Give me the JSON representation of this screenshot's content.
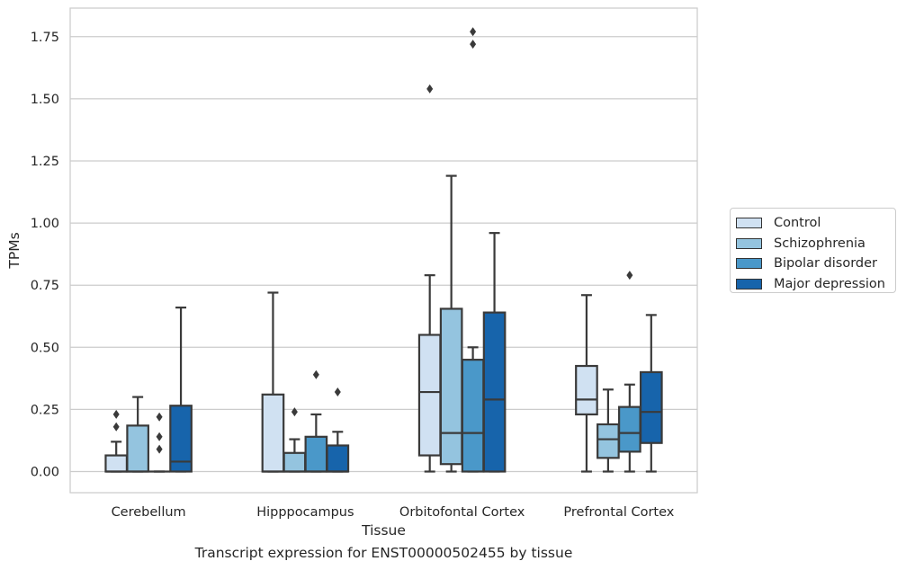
{
  "chart_data": {
    "type": "boxplot",
    "xlabel": "Tissue",
    "ylabel": "TPMs",
    "caption": "Transcript expression for ENST00000502455 by tissue",
    "ylim": [
      -0.085,
      1.865
    ],
    "yticks": [
      "0.00",
      "0.25",
      "0.50",
      "0.75",
      "1.00",
      "1.25",
      "1.50",
      "1.75"
    ],
    "grid": "horizontal",
    "legend_position": "right",
    "categories": [
      "Cerebellum",
      "Hipppocampus",
      "Orbitofontal Cortex",
      "Prefrontal Cortex"
    ],
    "series": [
      {
        "name": "Control",
        "color": "#d0e1f2",
        "boxes": [
          {
            "whislo": 0.0,
            "q1": 0.0,
            "med": 0.0,
            "q3": 0.065,
            "whishi": 0.12,
            "fliers": [
              0.18,
              0.23
            ]
          },
          {
            "whislo": 0.0,
            "q1": 0.0,
            "med": 0.0,
            "q3": 0.31,
            "whishi": 0.72,
            "fliers": []
          },
          {
            "whislo": 0.0,
            "q1": 0.065,
            "med": 0.32,
            "q3": 0.55,
            "whishi": 0.79,
            "fliers": [
              1.54
            ]
          },
          {
            "whislo": 0.0,
            "q1": 0.23,
            "med": 0.29,
            "q3": 0.425,
            "whishi": 0.71,
            "fliers": []
          }
        ]
      },
      {
        "name": "Schizophrenia",
        "color": "#94c4df",
        "boxes": [
          {
            "whislo": 0.0,
            "q1": 0.0,
            "med": 0.0,
            "q3": 0.185,
            "whishi": 0.3,
            "fliers": []
          },
          {
            "whislo": 0.0,
            "q1": 0.0,
            "med": 0.0,
            "q3": 0.075,
            "whishi": 0.13,
            "fliers": [
              0.24
            ]
          },
          {
            "whislo": 0.0,
            "q1": 0.03,
            "med": 0.155,
            "q3": 0.655,
            "whishi": 1.19,
            "fliers": []
          },
          {
            "whislo": 0.0,
            "q1": 0.055,
            "med": 0.13,
            "q3": 0.19,
            "whishi": 0.33,
            "fliers": []
          }
        ]
      },
      {
        "name": "Bipolar disorder",
        "color": "#4a98c9",
        "boxes": [
          {
            "whislo": 0.0,
            "q1": 0.0,
            "med": 0.0,
            "q3": 0.0,
            "whishi": 0.0,
            "fliers": [
              0.09,
              0.14,
              0.22
            ]
          },
          {
            "whislo": 0.0,
            "q1": 0.0,
            "med": 0.0,
            "q3": 0.14,
            "whishi": 0.23,
            "fliers": [
              0.39
            ]
          },
          {
            "whislo": 0.0,
            "q1": 0.0,
            "med": 0.155,
            "q3": 0.45,
            "whishi": 0.5,
            "fliers": [
              1.72,
              1.77
            ]
          },
          {
            "whislo": 0.0,
            "q1": 0.08,
            "med": 0.155,
            "q3": 0.26,
            "whishi": 0.35,
            "fliers": [
              0.79
            ]
          }
        ]
      },
      {
        "name": "Major depression",
        "color": "#1764ab",
        "boxes": [
          {
            "whislo": 0.0,
            "q1": 0.0,
            "med": 0.04,
            "q3": 0.265,
            "whishi": 0.66,
            "fliers": []
          },
          {
            "whislo": 0.0,
            "q1": 0.0,
            "med": 0.0,
            "q3": 0.105,
            "whishi": 0.16,
            "fliers": [
              0.32
            ]
          },
          {
            "whislo": 0.0,
            "q1": 0.0,
            "med": 0.29,
            "q3": 0.64,
            "whishi": 0.96,
            "fliers": []
          },
          {
            "whislo": 0.0,
            "q1": 0.115,
            "med": 0.24,
            "q3": 0.4,
            "whishi": 0.63,
            "fliers": []
          }
        ]
      }
    ]
  }
}
